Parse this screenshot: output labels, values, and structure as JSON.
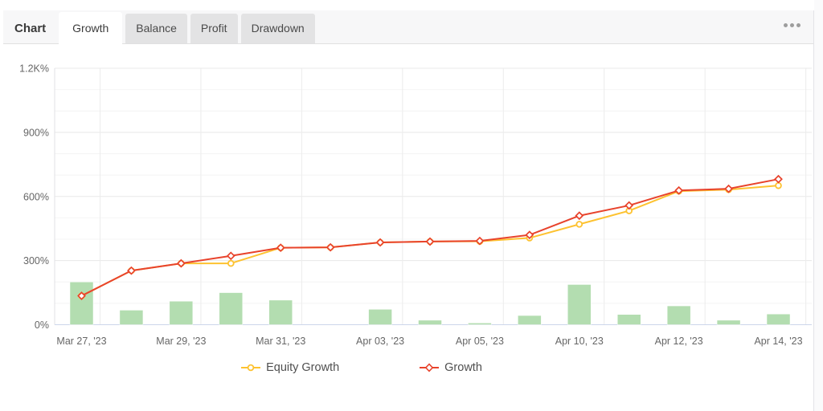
{
  "header": {
    "chart_label": "Chart",
    "tabs": [
      {
        "label": "Growth",
        "active": true
      },
      {
        "label": "Balance",
        "active": false
      },
      {
        "label": "Profit",
        "active": false
      },
      {
        "label": "Drawdown",
        "active": false
      }
    ],
    "menu_icon": "ellipsis-icon"
  },
  "colors": {
    "growth_line": "#e8432c",
    "equity_line": "#fdc230",
    "profit_bar": "#b3ddb0",
    "grid_major": "#e8e8e8",
    "grid_minor": "#f4f4f4",
    "grid_vertical": "#ececec",
    "x_axis_line": "#ccd6eb",
    "axis_text": "#666666",
    "tabbar_bg": "#f7f7f8",
    "tab_bg": "#e3e3e4"
  },
  "chart_data": {
    "type": "line",
    "title": "",
    "grid": "on",
    "legend_position": "bottom",
    "y_axis": {
      "unit": "%",
      "min": 0,
      "max": 1200,
      "minor_grid_step": 100,
      "major_ticks": [
        {
          "value": 0,
          "label": "0%"
        },
        {
          "value": 300,
          "label": "300%"
        },
        {
          "value": 600,
          "label": "600%"
        },
        {
          "value": 900,
          "label": "900%"
        },
        {
          "value": 1200,
          "label": "1.2K%"
        }
      ]
    },
    "x_axis": {
      "slot_count": 15,
      "ticks": [
        {
          "slot": 0,
          "label": "Mar 27, '23"
        },
        {
          "slot": 2,
          "label": "Mar 29, '23"
        },
        {
          "slot": 4,
          "label": "Mar 31, '23"
        },
        {
          "slot": 6,
          "label": "Apr 03, '23"
        },
        {
          "slot": 8,
          "label": "Apr 05, '23"
        },
        {
          "slot": 10,
          "label": "Apr 10, '23"
        },
        {
          "slot": 12,
          "label": "Apr 12, '23"
        },
        {
          "slot": 14,
          "label": "Apr 14, '23"
        }
      ]
    },
    "bars": {
      "color": "#b3ddb0",
      "values": [
        200,
        68,
        110,
        150,
        115,
        0,
        72,
        21,
        8,
        43,
        188,
        48,
        88,
        21,
        50
      ]
    },
    "lines": [
      {
        "label": "Equity Growth",
        "color": "#fdc230",
        "marker": "circle",
        "values": [
          135,
          253,
          287,
          287,
          360,
          362,
          385,
          389,
          390,
          406,
          470,
          533,
          625,
          632,
          651
        ]
      },
      {
        "label": "Growth",
        "color": "#e8432c",
        "marker": "diamond",
        "values": [
          135,
          253,
          287,
          322,
          360,
          362,
          385,
          389,
          392,
          420,
          510,
          558,
          628,
          636,
          681
        ]
      }
    ]
  }
}
